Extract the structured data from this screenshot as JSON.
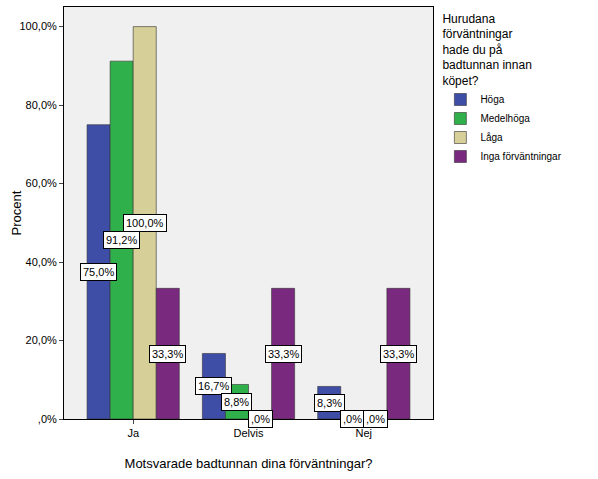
{
  "chart_data": {
    "type": "bar",
    "x_label": "Motsvarade badtunnan dina förväntningar?",
    "y_label": "Procent",
    "legend_title": "Hurudana förväntningar hade du på badtunnan innan köpet?",
    "categories": [
      "Ja",
      "Delvis",
      "Nej"
    ],
    "series": [
      {
        "name": "Höga",
        "color": "#3e4ea6",
        "values": [
          75.0,
          16.7,
          8.3
        ],
        "value_labels": [
          "75,0%",
          "16,7%",
          "8,3%"
        ]
      },
      {
        "name": "Medelhöga",
        "color": "#2fb04a",
        "values": [
          91.2,
          8.8,
          0
        ],
        "value_labels": [
          "91,2%",
          "8,8%",
          ",0%"
        ]
      },
      {
        "name": "Låga",
        "color": "#d6cf97",
        "values": [
          100.0,
          0,
          0
        ],
        "value_labels": [
          "100,0%",
          ",0%",
          ",0%"
        ]
      },
      {
        "name": "Inga förväntningar",
        "color": "#7a2a7e",
        "values": [
          33.3,
          33.3,
          33.3
        ],
        "value_labels": [
          "33,3%",
          "33,3%",
          "33,3%"
        ]
      }
    ],
    "ylim": [
      0,
      105
    ],
    "yticks": [
      {
        "value": 0,
        "label": ",0%"
      },
      {
        "value": 20,
        "label": "20,0%"
      },
      {
        "value": 40,
        "label": "40,0%"
      },
      {
        "value": 60,
        "label": "60,0%"
      },
      {
        "value": 80,
        "label": "80,0%"
      },
      {
        "value": 100,
        "label": "100,0%"
      }
    ],
    "grid": false,
    "legend": "top-right",
    "data_labels": true
  }
}
